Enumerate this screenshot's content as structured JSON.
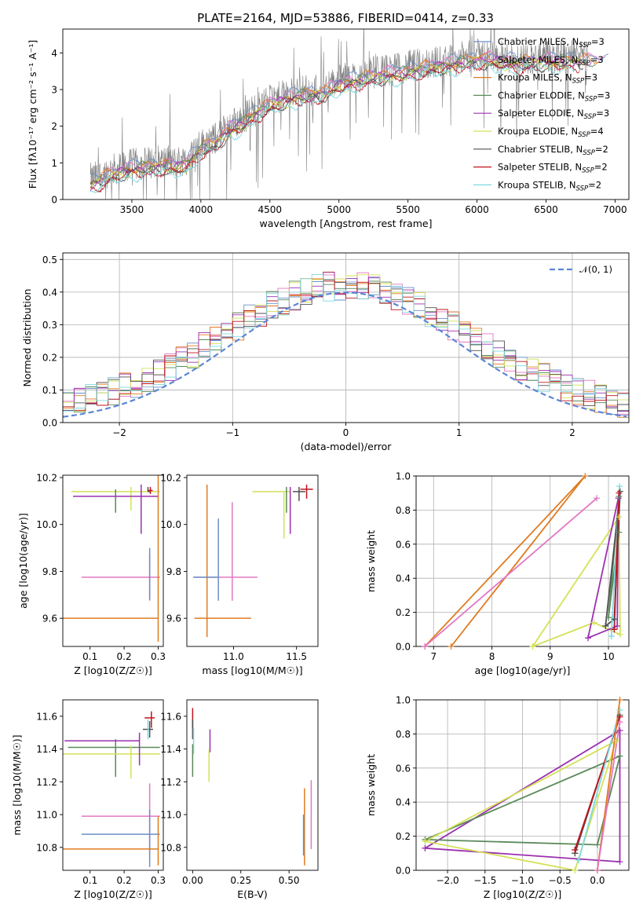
{
  "chart_data": [
    {
      "type": "line",
      "title": "PLATE=2164, MJD=53886, FIBERID=0414, z=0.33",
      "xlabel": "wavelength [Angstrom, rest frame]",
      "ylabel": "Flux [fλ10⁻¹⁷ erg cm⁻² s⁻¹ A⁻¹]",
      "xlim": [
        3000,
        7100
      ],
      "ylim": [
        0,
        4.65
      ],
      "xticks": [
        "3500",
        "4000",
        "4500",
        "5000",
        "5500",
        "6000",
        "6500",
        "7000"
      ],
      "yticks": [
        "0",
        "1",
        "2",
        "3",
        "4"
      ],
      "legend_placement": "upper-right",
      "data_series": {
        "name": "",
        "color": "#808080",
        "x_range": [
          3200,
          6800
        ]
      },
      "model_knots": {
        "x": [
          3200,
          3350,
          3500,
          3600,
          3700,
          3800,
          3900,
          4000,
          4100,
          4200,
          4300,
          4400,
          4500,
          4700,
          4900,
          5000,
          5200,
          5400,
          5600,
          5800,
          6000,
          6300,
          6600,
          6950
        ],
        "y": [
          0.55,
          0.8,
          0.95,
          1.0,
          1.05,
          1.0,
          1.1,
          1.5,
          1.65,
          2.0,
          2.2,
          2.5,
          2.7,
          2.95,
          3.05,
          3.25,
          3.45,
          3.55,
          3.7,
          3.8,
          3.95,
          3.85,
          3.9,
          3.9
        ]
      },
      "series": [
        {
          "name": "Chabrier MILES, N_SSP=3",
          "label_main": "Chabrier MILES, N",
          "label_sub": "SSP",
          "label_end": "=3",
          "color": "#6a8fc8"
        },
        {
          "name": "Salpeter MILES, N_SSP=3",
          "label_main": "Salpeter MILES, N",
          "label_sub": "SSP",
          "label_end": "=3",
          "color": "#e377c2"
        },
        {
          "name": "Kroupa MILES, N_SSP=3",
          "label_main": "Kroupa MILES, N",
          "label_sub": "SSP",
          "label_end": "=3",
          "color": "#e07b20"
        },
        {
          "name": "Chabrier ELODIE, N_SSP=3",
          "label_main": "Chabrier ELODIE, N",
          "label_sub": "SSP",
          "label_end": "=3",
          "color": "#5a8a5a"
        },
        {
          "name": "Salpeter ELODIE, N_SSP=3",
          "label_main": "Salpeter ELODIE, N",
          "label_sub": "SSP",
          "label_end": "=3",
          "color": "#9b30b0"
        },
        {
          "name": "Kroupa ELODIE, N_SSP=4",
          "label_main": "Kroupa ELODIE, N",
          "label_sub": "SSP",
          "label_end": "=4",
          "color": "#d4e157"
        },
        {
          "name": "Chabrier STELIB, N_SSP=2",
          "label_main": "Chabrier STELIB, N",
          "label_sub": "SSP",
          "label_end": "=2",
          "color": "#505050"
        },
        {
          "name": "Salpeter STELIB, N_SSP=2",
          "label_main": "Salpeter STELIB, N",
          "label_sub": "SSP",
          "label_end": "=2",
          "color": "#c0141c"
        },
        {
          "name": "Kroupa STELIB, N_SSP=2",
          "label_main": "Kroupa STELIB, N",
          "label_sub": "SSP",
          "label_end": "=2",
          "color": "#80d8e0"
        }
      ]
    },
    {
      "type": "line",
      "xlabel": "(data-model)/error",
      "ylabel": "Normed distribution",
      "xlim": [
        -2.5,
        2.5
      ],
      "ylim": [
        0,
        0.52
      ],
      "xticks": [
        "−2",
        "−1",
        "0",
        "1",
        "2"
      ],
      "yticks": [
        "0.0",
        "0.1",
        "0.2",
        "0.3",
        "0.4",
        "0.5"
      ],
      "grid": true,
      "legend_placement": "upper-right",
      "reference": {
        "name": "𝒩(0, 1)",
        "color": "#5b86d6",
        "style": "dashed",
        "mean": 0,
        "sigma": 1
      },
      "histograms": "step histograms, bin width 0.1, one per model (colors as in top panel)"
    },
    {
      "type": "scatter",
      "xlabel": "Z [log10(Z/Z☉)]",
      "ylabel": "age  [log10(age/yr)]",
      "xlim": [
        0.02,
        0.315
      ],
      "ylim": [
        9.48,
        10.21
      ],
      "xticks": [
        "0.1",
        "0.2",
        "0.3"
      ],
      "yticks": [
        "9.6",
        "9.8",
        "10.0",
        "10.2"
      ],
      "points": [
        {
          "x": 0.22,
          "y": 10.14,
          "xerr": [
            0.175,
            0.085
          ],
          "yerr": [
            0.08,
            0.02
          ],
          "color": "#d4e157"
        },
        {
          "x": 0.175,
          "y": 10.13,
          "xerr": [
            0.0,
            0.0
          ],
          "yerr": [
            0.08,
            0.02
          ],
          "color": "#5a8a5a"
        },
        {
          "x": 0.25,
          "y": 10.12,
          "xerr": [
            0.2,
            0.05
          ],
          "yerr": [
            0.16,
            0.05
          ],
          "color": "#9b30b0"
        },
        {
          "x": 0.27,
          "y": 10.14,
          "xerr": [
            0.0,
            0.005
          ],
          "yerr": [
            0.0,
            0.02
          ],
          "color": "#505050"
        },
        {
          "x": 0.277,
          "y": 10.145,
          "xerr": [
            0.007,
            0.007
          ],
          "yerr": [
            0.015,
            0.015
          ],
          "color": "#c0141c"
        },
        {
          "x": 0.275,
          "y": 9.775,
          "xerr": [
            0.2,
            0.03
          ],
          "yerr": [
            0.1,
            0.1
          ],
          "color": "#e377c2"
        },
        {
          "x": 0.3,
          "y": 9.6,
          "xerr": [
            0.28,
            0.0
          ],
          "yerr": [
            0.1,
            0.65
          ],
          "color": "#e07b20"
        },
        {
          "x": 0.275,
          "y": 9.8,
          "xerr": [
            0.0,
            0.0
          ],
          "yerr": [
            0.12,
            0.1
          ],
          "color": "#6a8fc8"
        }
      ]
    },
    {
      "type": "scatter",
      "xlabel": "mass [log10(M/M☉)]",
      "xlim": [
        10.63,
        11.67
      ],
      "ylim": [
        9.48,
        10.21
      ],
      "xticks": [
        "11.0",
        "11.5"
      ],
      "yticks": [
        "9.6",
        "9.8",
        "10.0",
        "10.2"
      ],
      "points": [
        {
          "x": 11.4,
          "y": 10.14,
          "xerr": [
            0.25,
            0.05
          ],
          "yerr": [
            0.2,
            0.0
          ],
          "color": "#d4e157"
        },
        {
          "x": 11.42,
          "y": 10.14,
          "xerr": [
            0.0,
            0.0
          ],
          "yerr": [
            0.09,
            0.02
          ],
          "color": "#5a8a5a"
        },
        {
          "x": 11.45,
          "y": 10.12,
          "xerr": [
            0.0,
            0.0
          ],
          "yerr": [
            0.16,
            0.04
          ],
          "color": "#9b30b0"
        },
        {
          "x": 11.52,
          "y": 10.14,
          "xerr": [
            0.05,
            0.05
          ],
          "yerr": [
            0.04,
            0.02
          ],
          "color": "#505050"
        },
        {
          "x": 11.58,
          "y": 10.15,
          "xerr": [
            0.05,
            0.05
          ],
          "yerr": [
            0.04,
            0.02
          ],
          "color": "#c0141c"
        },
        {
          "x": 10.99,
          "y": 9.775,
          "xerr": [
            0.3,
            0.2
          ],
          "yerr": [
            0.1,
            0.32
          ],
          "color": "#e377c2"
        },
        {
          "x": 10.79,
          "y": 9.6,
          "xerr": [
            0.1,
            0.35
          ],
          "yerr": [
            0.08,
            0.57
          ],
          "color": "#e07b20"
        },
        {
          "x": 10.88,
          "y": 9.775,
          "xerr": [
            0.2,
            0.0
          ],
          "yerr": [
            0.1,
            0.25
          ],
          "color": "#6a8fc8"
        }
      ]
    },
    {
      "type": "line",
      "xlabel": "age  [log10(age/yr)]",
      "ylabel": "mass weight",
      "xlim": [
        6.7,
        10.35
      ],
      "ylim": [
        0,
        1.0
      ],
      "xticks": [
        "7",
        "8",
        "9",
        "10"
      ],
      "yticks": [
        "0.0",
        "0.2",
        "0.4",
        "0.6",
        "0.8",
        "1.0"
      ],
      "grid": true,
      "series": [
        {
          "color": "#e07b20",
          "x": [
            7.3,
            9.6,
            6.85
          ],
          "y": [
            0.0,
            1.0,
            0.0
          ]
        },
        {
          "color": "#e377c2",
          "x": [
            6.85,
            9.8,
            6.85
          ],
          "y": [
            0.0,
            0.87,
            0.0
          ]
        },
        {
          "color": "#d4e157",
          "x": [
            8.7,
            9.75,
            10.2,
            10.18,
            8.7
          ],
          "y": [
            0.0,
            0.14,
            0.07,
            0.76,
            0.0
          ]
        },
        {
          "color": "#9b30b0",
          "x": [
            9.65,
            10.15,
            10.17,
            9.65
          ],
          "y": [
            0.05,
            0.12,
            0.87,
            0.05
          ]
        },
        {
          "color": "#5a8a5a",
          "x": [
            10.0,
            10.18,
            10.18,
            10.0
          ],
          "y": [
            0.17,
            0.67,
            0.88,
            0.17
          ]
        },
        {
          "color": "#505050",
          "x": [
            9.95,
            10.1,
            10.2,
            9.95
          ],
          "y": [
            0.12,
            0.16,
            0.91,
            0.12
          ]
        },
        {
          "color": "#80d8e0",
          "x": [
            10.05,
            10.19,
            10.05
          ],
          "y": [
            0.06,
            0.94,
            0.06
          ]
        },
        {
          "color": "#c0141c",
          "x": [
            10.1,
            10.18,
            10.1
          ],
          "y": [
            0.1,
            0.9,
            0.1
          ]
        }
      ]
    },
    {
      "type": "scatter",
      "xlabel": "Z [log10(Z/Z☉)]",
      "ylabel": "mass [log10(M/M☉)]",
      "xlim": [
        0.02,
        0.315
      ],
      "ylim": [
        10.66,
        11.7
      ],
      "xticks": [
        "0.1",
        "0.2",
        "0.3"
      ],
      "yticks": [
        "10.8",
        "11.0",
        "11.2",
        "11.4",
        "11.6"
      ],
      "points": [
        {
          "x": 0.175,
          "y": 11.41,
          "xerr": [
            0.14,
            0.13
          ],
          "yerr": [
            0.18,
            0.05
          ],
          "color": "#5a8a5a"
        },
        {
          "x": 0.22,
          "y": 11.37,
          "xerr": [
            0.2,
            0.085
          ],
          "yerr": [
            0.15,
            0.05
          ],
          "color": "#d4e157"
        },
        {
          "x": 0.245,
          "y": 11.45,
          "xerr": [
            0.22,
            0.0
          ],
          "yerr": [
            0.15,
            0.05
          ],
          "color": "#9b30b0"
        },
        {
          "x": 0.275,
          "y": 11.52,
          "xerr": [
            0.02,
            0.01
          ],
          "yerr": [
            0.05,
            0.05
          ],
          "color": "#505050"
        },
        {
          "x": 0.28,
          "y": 11.59,
          "xerr": [
            0.02,
            0.01
          ],
          "yerr": [
            0.06,
            0.04
          ],
          "color": "#c0141c"
        },
        {
          "x": 0.27,
          "y": 11.52,
          "xerr": [
            0.0,
            0.0
          ],
          "yerr": [
            0.06,
            0.06
          ],
          "color": "#80d8e0"
        },
        {
          "x": 0.275,
          "y": 10.99,
          "xerr": [
            0.2,
            0.03
          ],
          "yerr": [
            0.25,
            0.2
          ],
          "color": "#e377c2"
        },
        {
          "x": 0.275,
          "y": 10.88,
          "xerr": [
            0.2,
            0.03
          ],
          "yerr": [
            0.2,
            0.15
          ],
          "color": "#6a8fc8"
        },
        {
          "x": 0.3,
          "y": 10.79,
          "xerr": [
            0.28,
            0.0
          ],
          "yerr": [
            0.1,
            0.2
          ],
          "color": "#e07b20"
        }
      ]
    },
    {
      "type": "scatter",
      "xlabel": "E(B-V)",
      "xlim": [
        -0.03,
        0.65
      ],
      "ylim": [
        10.66,
        11.7
      ],
      "xticks": [
        "0.00",
        "0.25",
        "0.50"
      ],
      "yticks": [
        "10.8",
        "11.0",
        "11.2",
        "11.4",
        "11.6"
      ],
      "points": [
        {
          "x": 0.0,
          "y": 11.59,
          "xerr": [
            0,
            0
          ],
          "yerr": [
            0.06,
            0.06
          ],
          "color": "#c0141c"
        },
        {
          "x": 0.0,
          "y": 11.52,
          "xerr": [
            0,
            0
          ],
          "yerr": [
            0.06,
            0.06
          ],
          "color": "#505050"
        },
        {
          "x": 0.005,
          "y": 11.45,
          "xerr": [
            0,
            0
          ],
          "yerr": [
            0.08,
            0.08
          ],
          "color": "#80d8e0"
        },
        {
          "x": 0.0,
          "y": 11.38,
          "xerr": [
            0,
            0
          ],
          "yerr": [
            0.15,
            0.05
          ],
          "color": "#5a8a5a"
        },
        {
          "x": 0.09,
          "y": 11.45,
          "xerr": [
            0,
            0
          ],
          "yerr": [
            0.07,
            0.07
          ],
          "color": "#9b30b0"
        },
        {
          "x": 0.085,
          "y": 11.32,
          "xerr": [
            0,
            0
          ],
          "yerr": [
            0.12,
            0.08
          ],
          "color": "#d4e157"
        },
        {
          "x": 0.58,
          "y": 10.99,
          "xerr": [
            0,
            0
          ],
          "yerr": [
            0.3,
            0.17
          ],
          "color": "#e07b20"
        },
        {
          "x": 0.615,
          "y": 10.99,
          "xerr": [
            0,
            0
          ],
          "yerr": [
            0.2,
            0.22
          ],
          "color": "#e377c2"
        },
        {
          "x": 0.575,
          "y": 10.9,
          "xerr": [
            0,
            0
          ],
          "yerr": [
            0.15,
            0.1
          ],
          "color": "#6a8fc8"
        }
      ]
    },
    {
      "type": "line",
      "xlabel": "Z [log10(Z/Z☉)]",
      "ylabel": "mass weight",
      "xlim": [
        -2.42,
        0.42
      ],
      "ylim": [
        0,
        1.0
      ],
      "xticks": [
        "−2.0",
        "−1.5",
        "−1.0",
        "−0.5",
        "0.0"
      ],
      "yticks": [
        "0.0",
        "0.2",
        "0.4",
        "0.6",
        "0.8",
        "1.0"
      ],
      "grid": true,
      "series": [
        {
          "color": "#9b30b0",
          "x": [
            -2.3,
            0.3,
            0.3,
            -2.3
          ],
          "y": [
            0.13,
            0.82,
            0.05,
            0.13
          ]
        },
        {
          "color": "#5a8a5a",
          "x": [
            -2.3,
            0.0,
            0.3,
            -2.3
          ],
          "y": [
            0.18,
            0.15,
            0.67,
            0.18
          ]
        },
        {
          "color": "#d4e157",
          "x": [
            -2.3,
            -0.3,
            0.25,
            -2.3
          ],
          "y": [
            0.17,
            0.0,
            0.76,
            0.17
          ]
        },
        {
          "color": "#505050",
          "x": [
            -0.3,
            0.3,
            -0.3
          ],
          "y": [
            0.1,
            0.91,
            0.1
          ]
        },
        {
          "color": "#c0141c",
          "x": [
            -0.3,
            0.3,
            -0.3
          ],
          "y": [
            0.12,
            0.9,
            0.12
          ]
        },
        {
          "color": "#80d8e0",
          "x": [
            -0.25,
            0.3,
            -0.25
          ],
          "y": [
            0.06,
            0.94,
            0.06
          ]
        },
        {
          "color": "#e07b20",
          "x": [
            0.0,
            0.3,
            0.0
          ],
          "y": [
            0.0,
            1.0,
            0.0
          ]
        },
        {
          "color": "#e377c2",
          "x": [
            0.0,
            0.3,
            0.0
          ],
          "y": [
            0.0,
            0.87,
            0.0
          ]
        }
      ]
    }
  ]
}
